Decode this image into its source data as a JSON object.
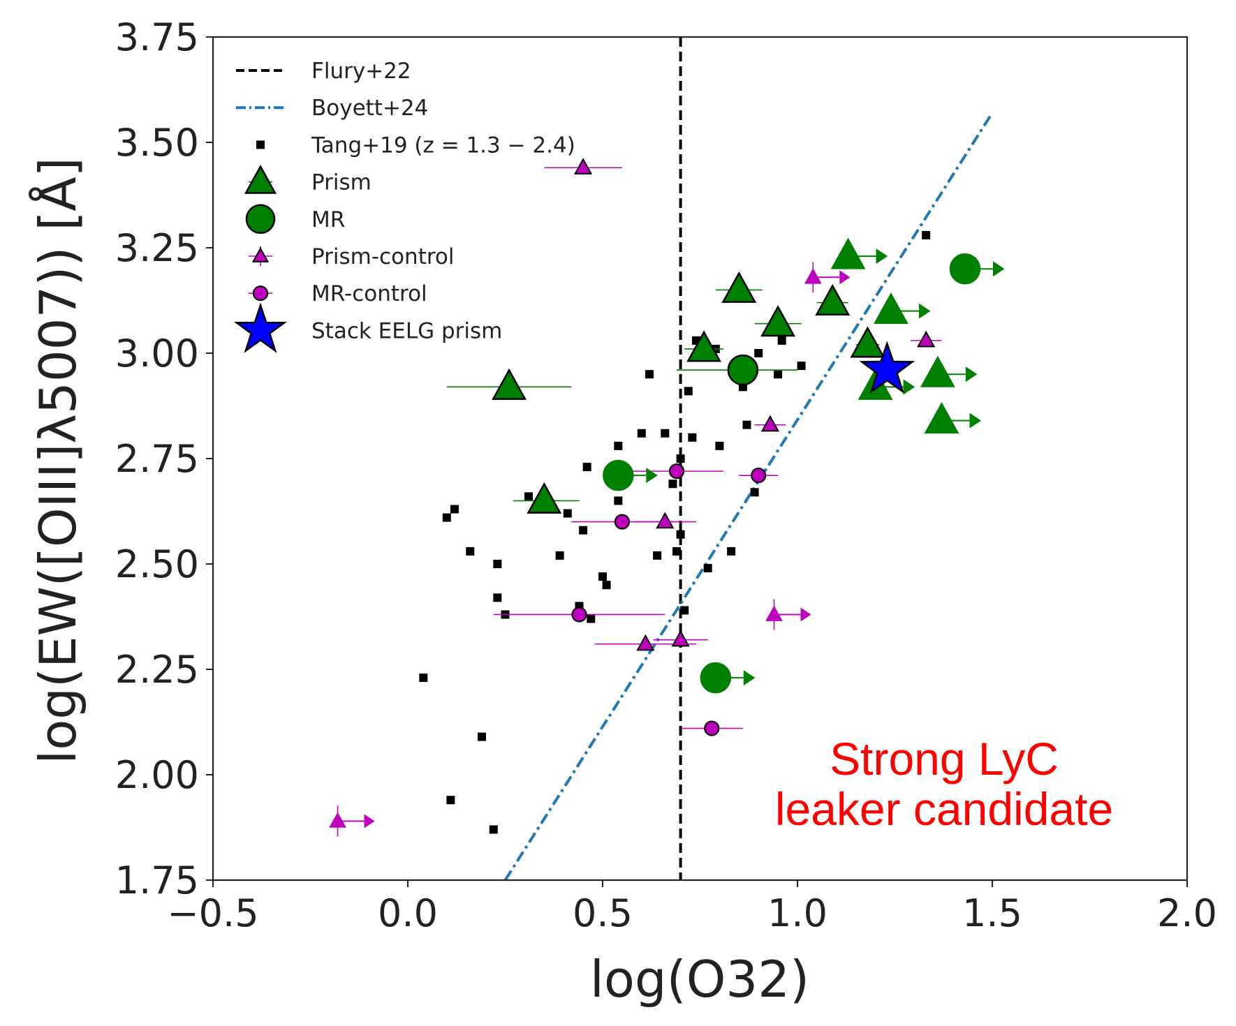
{
  "chart_data": {
    "type": "scatter",
    "title": "",
    "xlabel": "log(O32)",
    "ylabel": "log(EW([OIII]λ5007)) [Å]",
    "xlim": [
      -0.5,
      2.0
    ],
    "ylim": [
      1.75,
      3.75
    ],
    "xticks": [
      -0.5,
      0.0,
      0.5,
      1.0,
      1.5,
      2.0
    ],
    "xtick_labels": [
      "−0.5",
      "0.0",
      "0.5",
      "1.0",
      "1.5",
      "2.0"
    ],
    "yticks": [
      1.75,
      2.0,
      2.25,
      2.5,
      2.75,
      3.0,
      3.25,
      3.5,
      3.75
    ],
    "ytick_labels": [
      "1.75",
      "2.00",
      "2.25",
      "2.50",
      "2.75",
      "3.00",
      "3.25",
      "3.50",
      "3.75"
    ],
    "grid": false,
    "legend_position": "top-left",
    "legend": [
      {
        "key": "flury",
        "label": "Flury+22"
      },
      {
        "key": "boyett",
        "label": "Boyett+24"
      },
      {
        "key": "tang",
        "label": "Tang+19 (z = 1.3 − 2.4)"
      },
      {
        "key": "prism",
        "label": "Prism"
      },
      {
        "key": "mr",
        "label": "MR"
      },
      {
        "key": "prism_control",
        "label": "Prism-control"
      },
      {
        "key": "mr_control",
        "label": "MR-control"
      },
      {
        "key": "stack",
        "label": "Stack EELG prism"
      }
    ],
    "annotation": [
      "Strong LyC",
      "leaker candidate"
    ],
    "colors": {
      "green": "#008000",
      "magenta": "#bf00bf",
      "blue": "#0000ff",
      "boyett": "#1f77b4",
      "annotation": "#ff0000",
      "black": "#000000"
    },
    "lines": {
      "flury": {
        "x": 0.7
      },
      "boyett": {
        "x": [
          0.25,
          1.5
        ],
        "y": [
          1.75,
          3.57
        ]
      }
    },
    "series": {
      "tang": [
        [
          0.04,
          2.23
        ],
        [
          0.1,
          2.61
        ],
        [
          0.11,
          1.94
        ],
        [
          0.12,
          2.63
        ],
        [
          0.16,
          2.53
        ],
        [
          0.19,
          2.09
        ],
        [
          0.22,
          1.87
        ],
        [
          0.23,
          2.42
        ],
        [
          0.23,
          2.5
        ],
        [
          0.25,
          2.38
        ],
        [
          0.31,
          2.66
        ],
        [
          0.39,
          2.52
        ],
        [
          0.41,
          2.62
        ],
        [
          0.44,
          2.4
        ],
        [
          0.45,
          2.58
        ],
        [
          0.46,
          2.73
        ],
        [
          0.47,
          2.37
        ],
        [
          0.5,
          2.47
        ],
        [
          0.51,
          2.45
        ],
        [
          0.54,
          2.78
        ],
        [
          0.54,
          2.65
        ],
        [
          0.6,
          2.81
        ],
        [
          0.62,
          2.95
        ],
        [
          0.64,
          2.52
        ],
        [
          0.66,
          2.81
        ],
        [
          0.68,
          2.69
        ],
        [
          0.69,
          2.53
        ],
        [
          0.7,
          2.75
        ],
        [
          0.71,
          2.39
        ],
        [
          0.72,
          2.91
        ],
        [
          0.7,
          2.57
        ],
        [
          0.73,
          2.8
        ],
        [
          0.74,
          3.03
        ],
        [
          0.77,
          2.49
        ],
        [
          0.79,
          3.01
        ],
        [
          0.8,
          2.78
        ],
        [
          0.83,
          2.53
        ],
        [
          0.86,
          2.92
        ],
        [
          0.87,
          2.83
        ],
        [
          0.89,
          2.67
        ],
        [
          0.9,
          3.0
        ],
        [
          0.95,
          2.95
        ],
        [
          0.96,
          3.03
        ],
        [
          1.01,
          2.97
        ],
        [
          1.33,
          3.28
        ]
      ],
      "prism": [
        {
          "x": 0.26,
          "y": 2.92,
          "xerr": [
            0.16,
            0.16
          ],
          "lim": false
        },
        {
          "x": 0.35,
          "y": 2.65,
          "xerr": [
            0.08,
            0.09
          ],
          "lim": false
        },
        {
          "x": 0.76,
          "y": 3.01,
          "xerr": [
            0.05,
            0.05
          ],
          "lim": false
        },
        {
          "x": 0.85,
          "y": 3.15,
          "xerr": [
            0.06,
            0.06
          ],
          "lim": false
        },
        {
          "x": 0.95,
          "y": 3.07,
          "xerr": [
            0.06,
            0.06
          ],
          "lim": false
        },
        {
          "x": 1.09,
          "y": 3.12,
          "xerr": [
            0.04,
            0.04
          ],
          "lim": false
        },
        {
          "x": 1.18,
          "y": 3.02,
          "xerr": [
            0.03,
            0.03
          ],
          "lim": false
        },
        {
          "x": 1.13,
          "y": 3.23,
          "xerr": [
            0,
            0
          ],
          "lim": true
        },
        {
          "x": 1.24,
          "y": 3.1,
          "xerr": [
            0,
            0
          ],
          "lim": true
        },
        {
          "x": 1.2,
          "y": 2.92,
          "xerr": [
            0,
            0
          ],
          "lim": true
        },
        {
          "x": 1.36,
          "y": 2.95,
          "xerr": [
            0,
            0
          ],
          "lim": true
        },
        {
          "x": 1.37,
          "y": 2.84,
          "xerr": [
            0,
            0
          ],
          "lim": true
        }
      ],
      "mr": [
        {
          "x": 0.54,
          "y": 2.71,
          "xerr": [
            0,
            0
          ],
          "lim": true
        },
        {
          "x": 0.86,
          "y": 2.96,
          "xerr": [
            0.17,
            0.14
          ],
          "lim": false
        },
        {
          "x": 0.79,
          "y": 2.23,
          "xerr": [
            0,
            0
          ],
          "lim": true
        },
        {
          "x": 1.43,
          "y": 3.2,
          "xerr": [
            0,
            0
          ],
          "lim": true
        }
      ],
      "prism_control": [
        {
          "x": 0.45,
          "y": 3.44,
          "xerr": [
            0.1,
            0.1
          ],
          "lim": false
        },
        {
          "x": 0.66,
          "y": 2.6,
          "xerr": [
            0.08,
            0.08
          ],
          "lim": false
        },
        {
          "x": 0.61,
          "y": 2.31,
          "xerr": [
            0.13,
            0.13
          ],
          "lim": false
        },
        {
          "x": 0.7,
          "y": 2.32,
          "xerr": [
            0.07,
            0.07
          ],
          "lim": false
        },
        {
          "x": 0.93,
          "y": 2.83,
          "xerr": [
            0.04,
            0.04
          ],
          "lim": false
        },
        {
          "x": 1.33,
          "y": 3.03,
          "xerr": [
            0.04,
            0.04
          ],
          "lim": false
        },
        {
          "x": 1.04,
          "y": 3.18,
          "xerr": [
            0,
            0
          ],
          "lim": true
        },
        {
          "x": 0.94,
          "y": 2.38,
          "xerr": [
            0,
            0
          ],
          "lim": true
        },
        {
          "x": -0.18,
          "y": 1.89,
          "xerr": [
            0,
            0
          ],
          "lim": true
        }
      ],
      "mr_control": [
        {
          "x": 0.55,
          "y": 2.6,
          "xerr": [
            0.13,
            0.13
          ],
          "lim": false
        },
        {
          "x": 0.69,
          "y": 2.72,
          "xerr": [
            0.12,
            0.12
          ],
          "lim": false
        },
        {
          "x": 0.9,
          "y": 2.71,
          "xerr": [
            0.05,
            0.05
          ],
          "lim": false
        },
        {
          "x": 0.44,
          "y": 2.38,
          "xerr": [
            0.22,
            0.22
          ],
          "lim": false
        },
        {
          "x": 0.78,
          "y": 2.11,
          "xerr": [
            0.08,
            0.08
          ],
          "lim": false
        }
      ],
      "stack": [
        {
          "x": 1.23,
          "y": 2.96
        }
      ]
    }
  }
}
